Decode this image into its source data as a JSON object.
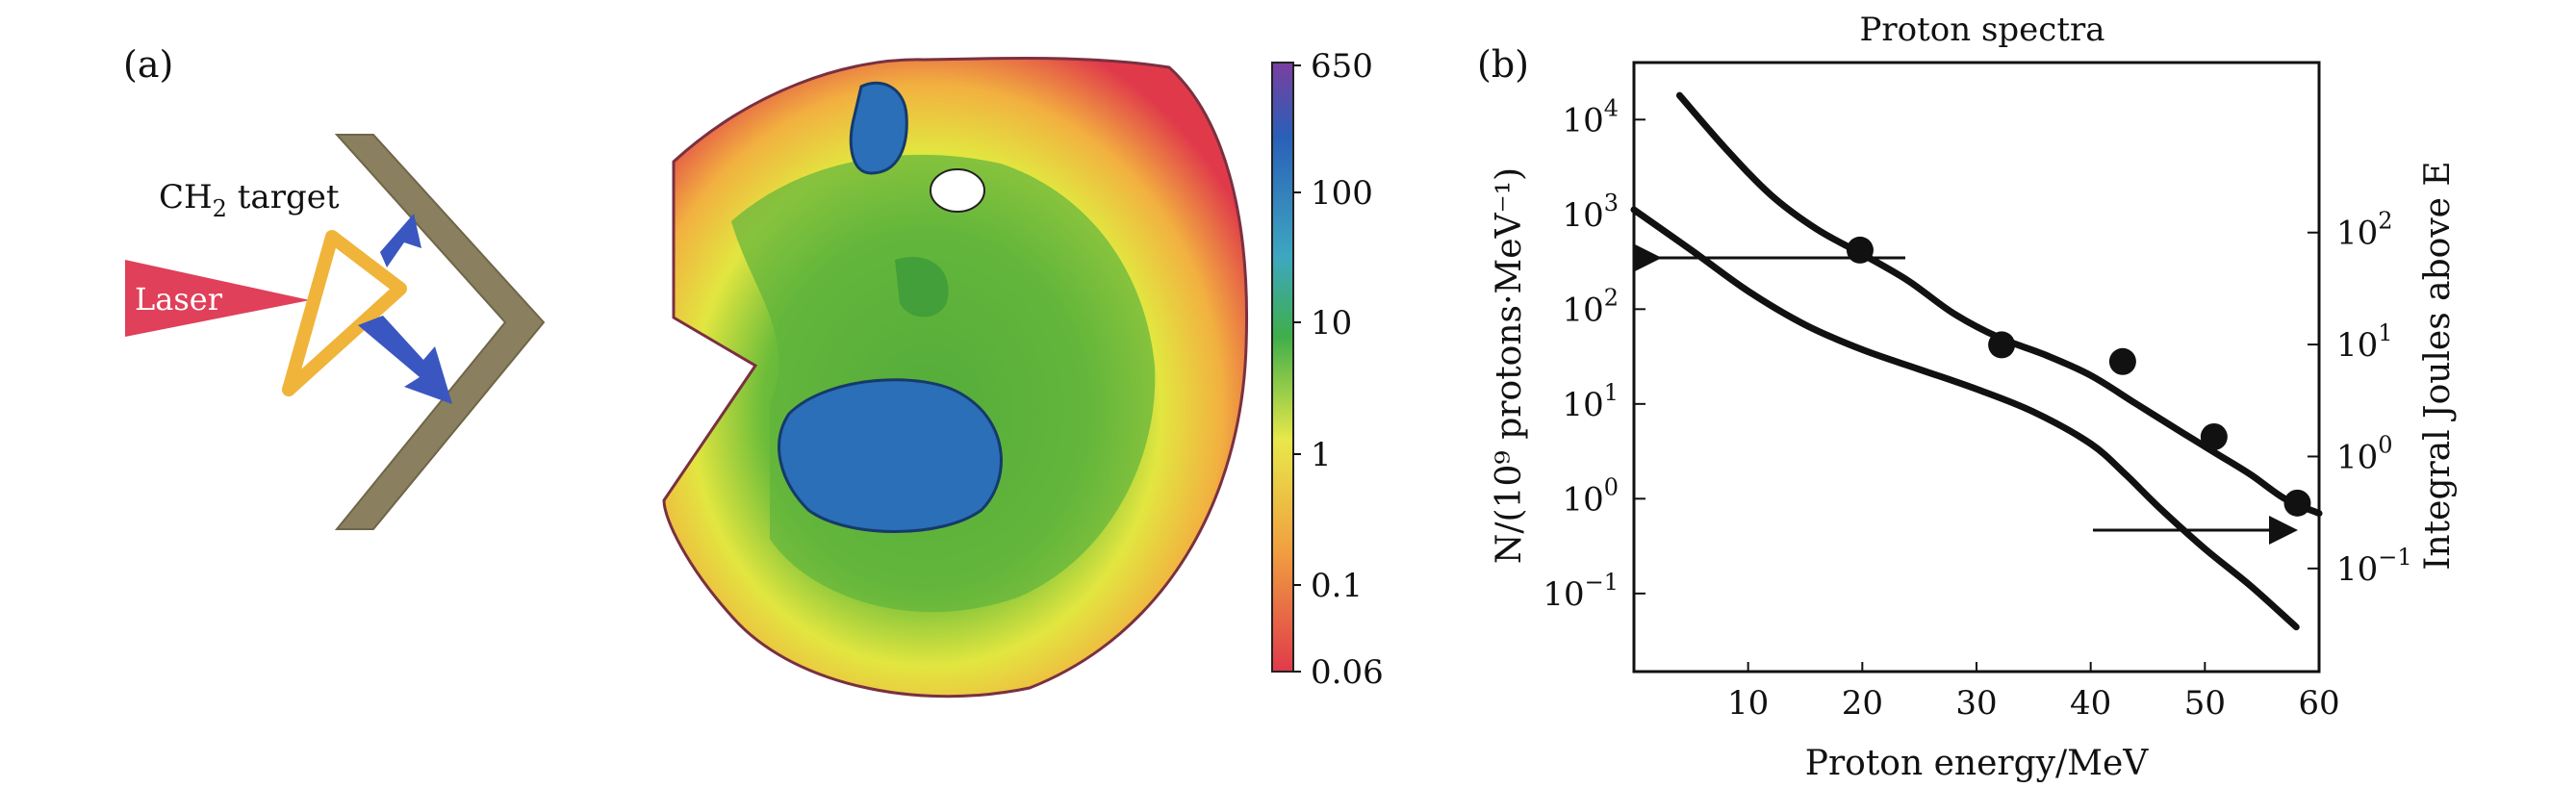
{
  "panel_a": {
    "label": "(a)",
    "target_label_main": "CH",
    "target_label_sub": "2",
    "target_label_rest": " target",
    "laser_label": "Laser",
    "colorbar": {
      "ticks": [
        "650",
        "100",
        "10",
        "1",
        "0.1",
        "0.06"
      ],
      "colors": [
        "#7b3fa0",
        "#2a5fb8",
        "#3ea7c0",
        "#3fae4a",
        "#e8e84a",
        "#f0a040",
        "#e03a4a"
      ]
    }
  },
  "panel_b": {
    "label": "(b)",
    "title": "Proton spectra",
    "xlabel": "Proton energy/MeV",
    "ylabel_left": "N/(10⁹ protons·MeV⁻¹)",
    "ylabel_right": "Integral Joules above E",
    "xticks": [
      "10",
      "20",
      "30",
      "40",
      "50",
      "60"
    ],
    "yticks_left": [
      {
        "base": "10",
        "exp": "4"
      },
      {
        "base": "10",
        "exp": "3"
      },
      {
        "base": "10",
        "exp": "2"
      },
      {
        "base": "10",
        "exp": "1"
      },
      {
        "base": "10",
        "exp": "0"
      },
      {
        "base": "10",
        "exp": "−1"
      }
    ],
    "yticks_right": [
      {
        "base": "10",
        "exp": "2"
      },
      {
        "base": "10",
        "exp": "1"
      },
      {
        "base": "10",
        "exp": "0"
      },
      {
        "base": "10",
        "exp": "−1"
      }
    ]
  },
  "chart_data": {
    "type": "line",
    "title": "Proton spectra",
    "xlabel": "Proton energy/MeV",
    "ylabel": "N/(10⁹ protons·MeV⁻¹)",
    "y2label": "Integral Joules above E",
    "xlim": [
      0,
      60
    ],
    "ylim_left": [
      0.015,
      40000
    ],
    "ylim_right": [
      0.012,
      3300
    ],
    "yscale": "log",
    "series": [
      {
        "axis": "left",
        "x": [
          4,
          8,
          12,
          16,
          20,
          24,
          28,
          32,
          36,
          40,
          44,
          48,
          51,
          54,
          57,
          60
        ],
        "values": [
          18000,
          5000,
          1600,
          700,
          380,
          200,
          90,
          50,
          33,
          20,
          10,
          5,
          3,
          1.8,
          1.0,
          0.7
        ]
      },
      {
        "axis": "right",
        "x": [
          0,
          5,
          10,
          15,
          20,
          25,
          30,
          35,
          40,
          43,
          46,
          50,
          54,
          58
        ],
        "values": [
          160,
          70,
          30,
          15,
          9,
          6,
          4,
          2.5,
          1.3,
          0.7,
          0.35,
          0.15,
          0.07,
          0.03
        ]
      }
    ],
    "points": {
      "x": [
        19.8,
        32.2,
        42.8,
        50.8,
        58.1
      ],
      "values": [
        420,
        42,
        28,
        4.5,
        0.9
      ]
    }
  }
}
